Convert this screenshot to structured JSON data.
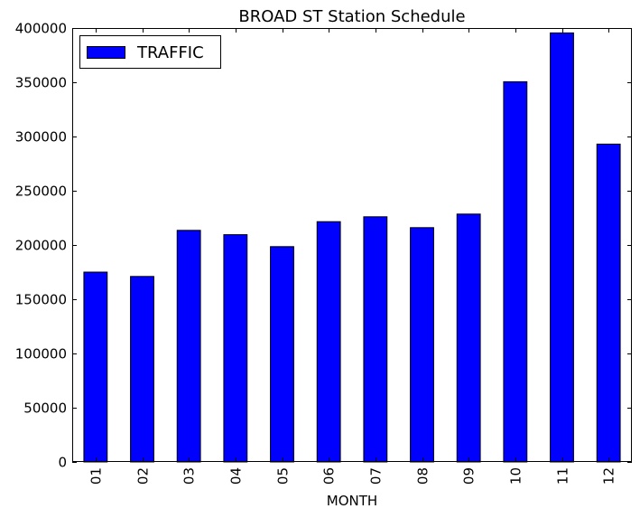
{
  "chart_data": {
    "type": "bar",
    "title": "BROAD ST Station Schedule",
    "xlabel": "MONTH",
    "ylabel": "",
    "categories": [
      "01",
      "02",
      "03",
      "04",
      "05",
      "06",
      "07",
      "08",
      "09",
      "10",
      "11",
      "12"
    ],
    "series": [
      {
        "name": "TRAFFIC",
        "color": "#0000ff",
        "values": [
          175000,
          171000,
          213500,
          209500,
          198500,
          221500,
          226000,
          216000,
          228500,
          350500,
          395500,
          293000
        ]
      }
    ],
    "ylim": [
      0,
      400000
    ],
    "yticks": [
      0,
      50000,
      100000,
      150000,
      200000,
      250000,
      300000,
      350000,
      400000
    ],
    "ytick_labels": [
      "0",
      "50000",
      "100000",
      "150000",
      "200000",
      "250000",
      "300000",
      "350000",
      "400000"
    ],
    "grid": false,
    "legend_position": "top-left"
  }
}
